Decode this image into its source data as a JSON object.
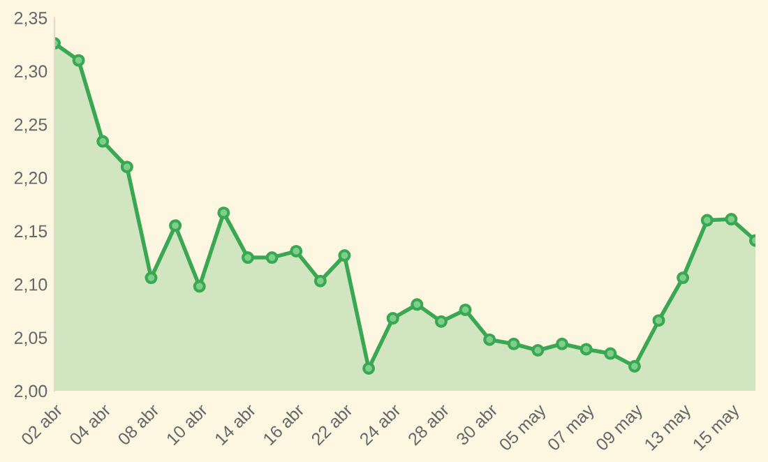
{
  "chart_data": {
    "type": "area",
    "categories": [
      "02 abr",
      null,
      "04 abr",
      null,
      "08 abr",
      null,
      "10 abr",
      null,
      "14 abr",
      null,
      "16 abr",
      null,
      "22 abr",
      null,
      "24 abr",
      null,
      "28 abr",
      null,
      "30 abr",
      null,
      "05 may",
      null,
      "07 may",
      null,
      "09 may",
      null,
      "13 may",
      null,
      "15 may",
      null
    ],
    "series": [
      {
        "color": "#3aa852",
        "values": [
          2.326,
          2.31,
          2.234,
          2.21,
          2.106,
          2.155,
          2.098,
          2.167,
          2.125,
          2.125,
          2.131,
          2.103,
          2.127,
          2.021,
          2.068,
          2.081,
          2.065,
          2.076,
          2.048,
          2.044,
          2.038,
          2.044,
          2.039,
          2.035,
          2.023,
          2.066,
          2.106,
          2.16,
          2.161,
          2.141
        ]
      }
    ],
    "ylim": [
      2.0,
      2.35
    ],
    "yticks": [
      {
        "value": 2.0,
        "label": "2,00"
      },
      {
        "value": 2.05,
        "label": "2,05"
      },
      {
        "value": 2.1,
        "label": "2,10"
      },
      {
        "value": 2.15,
        "label": "2,15"
      },
      {
        "value": 2.2,
        "label": "2,20"
      },
      {
        "value": 2.25,
        "label": "2,25"
      },
      {
        "value": 2.3,
        "label": "2,30"
      },
      {
        "value": 2.35,
        "label": "2,35"
      }
    ],
    "grid": false,
    "legend": false,
    "marker": "circle",
    "line_style": "solid"
  }
}
